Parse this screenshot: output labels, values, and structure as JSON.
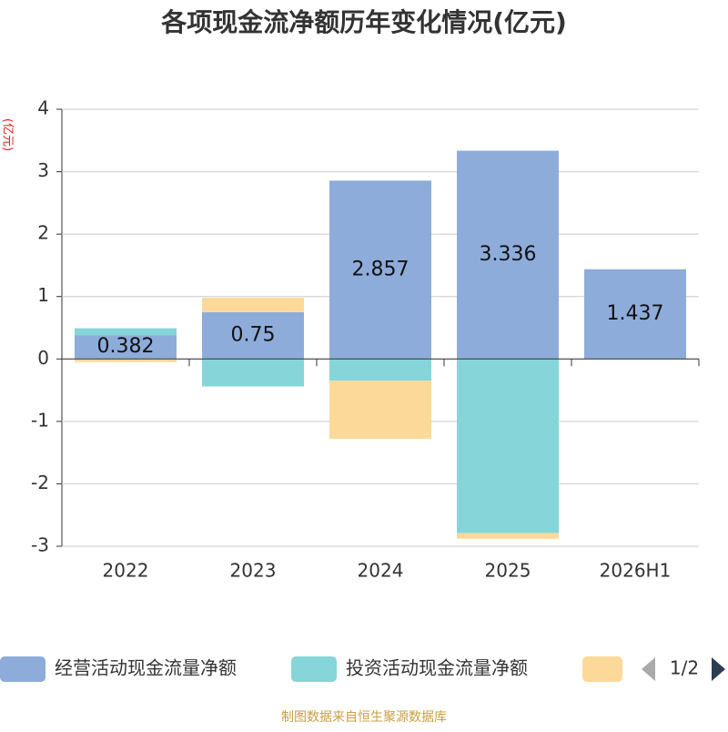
{
  "chart_data": {
    "type": "stacked_bar",
    "title": "各项现金流净额历年变化情况(亿元)",
    "y_unit": "(亿元)",
    "categories": [
      "2022",
      "2023",
      "2024",
      "2025",
      "2026H1"
    ],
    "series": [
      {
        "name": "经营活动现金流量净额",
        "color": "#8eacda",
        "values": [
          0.382,
          0.75,
          2.857,
          3.336,
          1.437
        ],
        "data_labels": true
      },
      {
        "name": "投资活动现金流量净额",
        "color": "#86d5d8",
        "values": [
          0.11,
          -0.44,
          -0.35,
          -2.79,
          null
        ]
      },
      {
        "color": "#fdd999",
        "values": [
          -0.05,
          0.23,
          -0.93,
          -0.09,
          null
        ]
      }
    ],
    "ylim": [
      -3,
      4
    ],
    "yticks": [
      -3,
      -2,
      -1,
      0,
      1,
      2,
      3,
      4
    ],
    "grid": true,
    "legend_page": "1/2",
    "source": "制图数据来自恒生聚源数据库"
  }
}
